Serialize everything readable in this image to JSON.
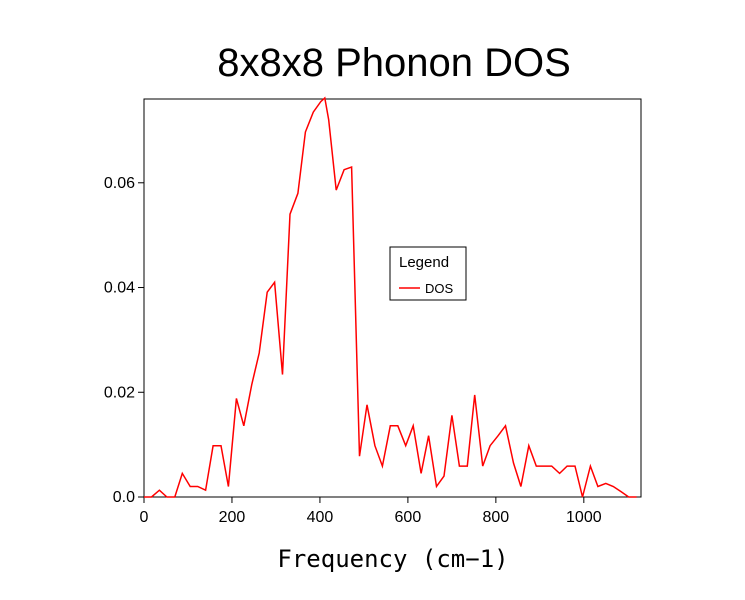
{
  "chart_data": {
    "type": "line",
    "title": "8x8x8 Phonon DOS",
    "xlabel": "Frequency (cm−1)",
    "ylabel": "",
    "xlim": [
      0,
      1130
    ],
    "ylim": [
      0,
      0.076
    ],
    "x_ticks": [
      0,
      200,
      400,
      600,
      800,
      1000
    ],
    "x_tick_labels": [
      "0",
      "200",
      "400",
      "600",
      "800",
      "1000"
    ],
    "y_ticks": [
      0,
      0.02,
      0.04,
      0.06
    ],
    "y_tick_labels": [
      "0.0",
      "0.02",
      "0.04",
      "0.06"
    ],
    "grid": false,
    "legend": {
      "title": "Legend",
      "placement": "center-right"
    },
    "series": [
      {
        "name": "DOS",
        "color": "#ff0000",
        "x": [
          0,
          17,
          35,
          52,
          70,
          87,
          105,
          122,
          140,
          157,
          175,
          192,
          210,
          227,
          245,
          262,
          280,
          297,
          315,
          332,
          350,
          367,
          385,
          402,
          411,
          420,
          437,
          455,
          472,
          490,
          507,
          525,
          542,
          560,
          577,
          595,
          612,
          630,
          647,
          665,
          682,
          700,
          717,
          735,
          752,
          770,
          787,
          805,
          822,
          840,
          857,
          875,
          892,
          910,
          927,
          945,
          962,
          980,
          997,
          1015,
          1032,
          1050,
          1067,
          1085,
          1102,
          1120
        ],
        "y": [
          0.0,
          0.0,
          0.0013,
          0.0,
          0.0,
          0.0045,
          0.002,
          0.002,
          0.0013,
          0.0098,
          0.0098,
          0.002,
          0.0188,
          0.0136,
          0.0215,
          0.0275,
          0.0391,
          0.041,
          0.0234,
          0.054,
          0.058,
          0.0697,
          0.0735,
          0.0755,
          0.0762,
          0.072,
          0.0586,
          0.0625,
          0.063,
          0.0078,
          0.0176,
          0.0098,
          0.0059,
          0.0136,
          0.0136,
          0.0098,
          0.0136,
          0.0045,
          0.0117,
          0.002,
          0.004,
          0.0156,
          0.0059,
          0.0059,
          0.0195,
          0.0059,
          0.0098,
          0.0117,
          0.0136,
          0.0065,
          0.002,
          0.0098,
          0.0059,
          0.0059,
          0.0059,
          0.0045,
          0.0059,
          0.0059,
          0.0,
          0.0059,
          0.002,
          0.0026,
          0.002,
          0.001,
          0.0,
          0.0
        ]
      }
    ]
  }
}
